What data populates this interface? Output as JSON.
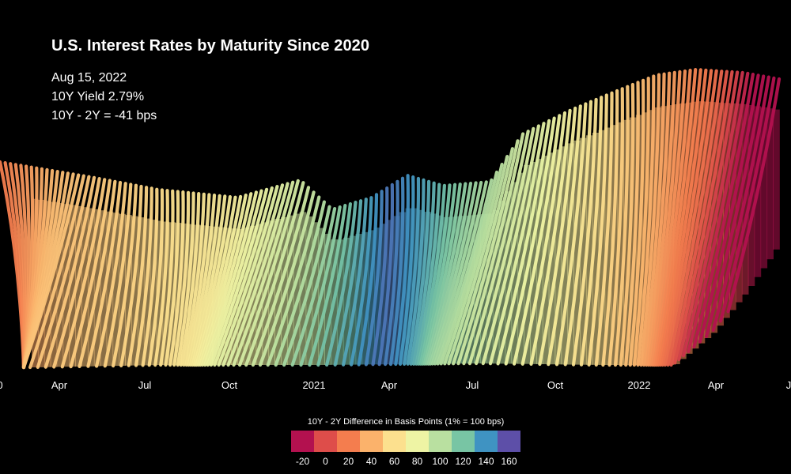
{
  "title": "U.S. Interest Rates by Maturity Since 2020",
  "info": {
    "date": "Aug 15, 2022",
    "yield": "10Y Yield 2.79%",
    "spread": "10Y - 2Y = -41 bps"
  },
  "chart_data": {
    "type": "area",
    "title": "U.S. Interest Rates by Maturity Since 2020",
    "x_tick_labels": [
      "0",
      "Apr",
      "Jul",
      "Oct",
      "2021",
      "Apr",
      "Jul",
      "Oct",
      "2022",
      "Apr",
      "J"
    ],
    "legend": {
      "title": "10Y - 2Y Difference in Basis Points (1% = 100 bps)",
      "labels": [
        "-20",
        "0",
        "20",
        "40",
        "60",
        "80",
        "100",
        "120",
        "140",
        "160"
      ],
      "colors": [
        "#b3114f",
        "#de4d4a",
        "#f47d4e",
        "#fbb26b",
        "#fce08e",
        "#eef4a4",
        "#b9e0a0",
        "#78c5a4",
        "#3f93c2",
        "#5d4fa8"
      ]
    },
    "spread_bps_by_period": [
      {
        "period": "Jan 2020",
        "spread_bps": 20
      },
      {
        "period": "Apr 2020",
        "spread_bps": 45
      },
      {
        "period": "Jul 2020",
        "spread_bps": 55
      },
      {
        "period": "Oct 2020",
        "spread_bps": 70
      },
      {
        "period": "Jan 2021",
        "spread_bps": 95
      },
      {
        "period": "Apr 2021",
        "spread_bps": 150
      },
      {
        "period": "Jul 2021",
        "spread_bps": 110
      },
      {
        "period": "Oct 2021",
        "spread_bps": 80
      },
      {
        "period": "Jan 2022",
        "spread_bps": 45
      },
      {
        "period": "Apr 2022",
        "spread_bps": 15
      },
      {
        "period": "Aug 2022",
        "spread_bps": -41
      }
    ]
  }
}
